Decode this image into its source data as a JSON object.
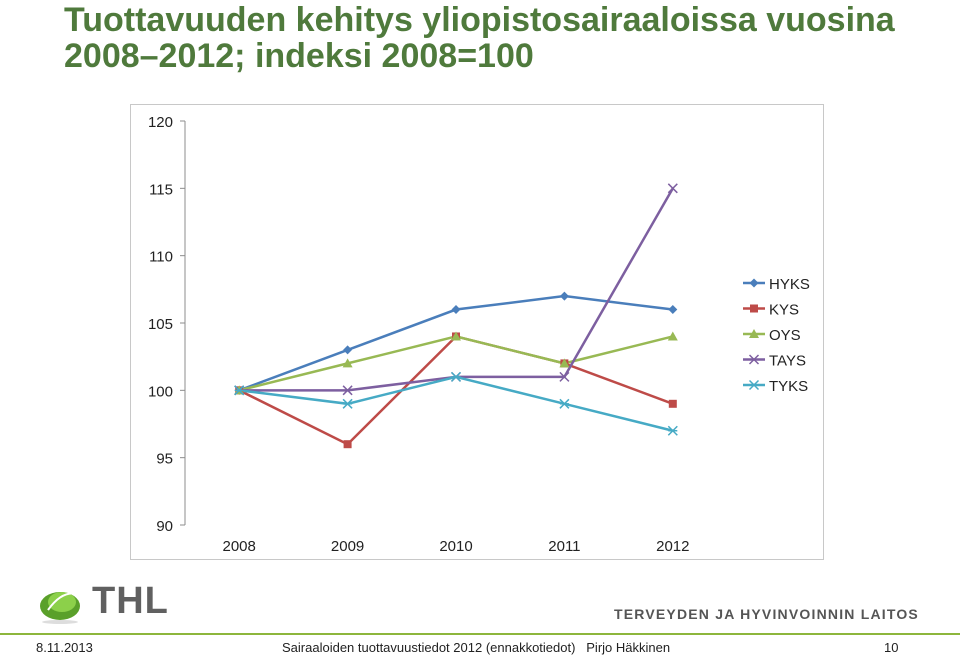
{
  "slide": {
    "title": "Tuottavuuden kehitys yliopistosairaaloissa vuosina 2008–2012; indeksi 2008=100",
    "logo_text": "THL",
    "institute": "TERVEYDEN JA HYVINVOINNIN LAITOS",
    "footer": {
      "date": "8.11.2013",
      "center": "Sairaaloiden tuottavuustiedot 2012 (ennakkotiedot)   Pirjo Häkkinen",
      "page": "10"
    },
    "colors": {
      "title": "#4f7a3c",
      "footer_line": "#8db63c",
      "logo": "#6fae2a"
    }
  },
  "chart_data": {
    "type": "line",
    "title": "",
    "xlabel": "",
    "ylabel": "",
    "categories": [
      "2008",
      "2009",
      "2010",
      "2011",
      "2012"
    ],
    "ylim": [
      90,
      120
    ],
    "yticks": [
      90,
      95,
      100,
      105,
      110,
      115,
      120
    ],
    "grid": false,
    "legend_position": "right",
    "series": [
      {
        "name": "HYKS",
        "values": [
          100,
          103,
          106,
          107,
          106
        ],
        "color": "#4a7ebb",
        "marker": "diamond"
      },
      {
        "name": "KYS",
        "values": [
          100,
          96,
          104,
          102,
          99
        ],
        "color": "#be4b48",
        "marker": "square"
      },
      {
        "name": "OYS",
        "values": [
          100,
          102,
          104,
          102,
          104
        ],
        "color": "#98b954",
        "marker": "triangle"
      },
      {
        "name": "TAYS",
        "values": [
          100,
          100,
          101,
          101,
          115
        ],
        "color": "#7d5fa0",
        "marker": "x"
      },
      {
        "name": "TYKS",
        "values": [
          100,
          99,
          101,
          99,
          97
        ],
        "color": "#46aac5",
        "marker": "star"
      }
    ]
  }
}
